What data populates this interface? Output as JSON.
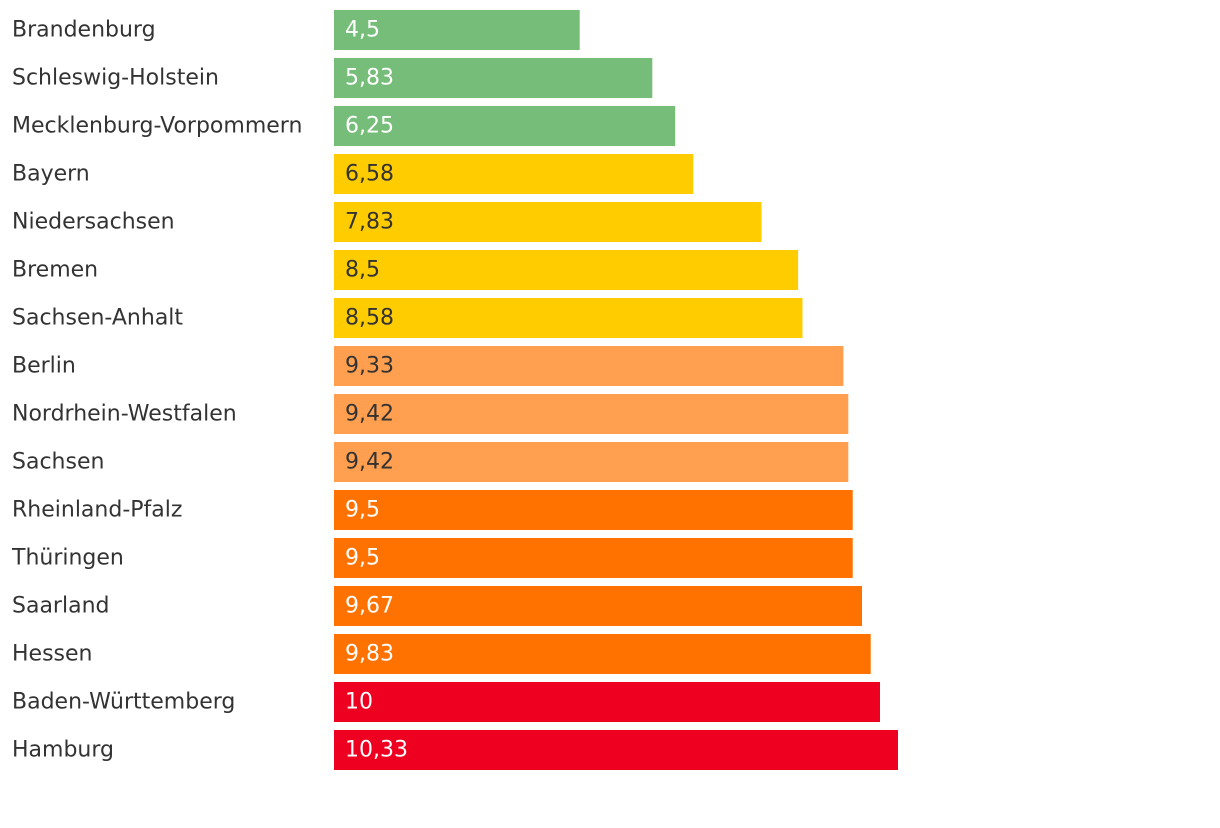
{
  "chart_data": {
    "type": "bar",
    "orientation": "horizontal",
    "title": "",
    "xlabel": "",
    "ylabel": "",
    "xlim": [
      0,
      10.33
    ],
    "grid": false,
    "legend": "none",
    "categories": [
      "Brandenburg",
      "Schleswig-Holstein",
      "Mecklenburg-Vorpommern",
      "Bayern",
      "Niedersachsen",
      "Bremen",
      "Sachsen-Anhalt",
      "Berlin",
      "Nordrhein-Westfalen",
      "Sachsen",
      "Rheinland-Pfalz",
      "Thüringen",
      "Saarland",
      "Hessen",
      "Baden-Württemberg",
      "Hamburg"
    ],
    "values": [
      4.5,
      5.83,
      6.25,
      6.58,
      7.83,
      8.5,
      8.58,
      9.33,
      9.42,
      9.42,
      9.5,
      9.5,
      9.67,
      9.83,
      10,
      10.33
    ],
    "value_labels": [
      "4,5",
      "5,83",
      "6,25",
      "6,58",
      "7,83",
      "8,5",
      "8,58",
      "9,33",
      "9,42",
      "9,42",
      "9,5",
      "9,5",
      "9,67",
      "9,83",
      "10",
      "10,33"
    ],
    "bar_colors": [
      "#77BD7A",
      "#77BD7A",
      "#77BD7A",
      "#FFCC00",
      "#FFCC00",
      "#FFCC00",
      "#FFCC00",
      "#FF9F4F",
      "#FF9F4F",
      "#FF9F4F",
      "#FF7200",
      "#FF7200",
      "#FF7200",
      "#FF7200",
      "#EE0020",
      "#EE0020"
    ],
    "label_colors": [
      "#ffffff",
      "#ffffff",
      "#ffffff",
      "#333333",
      "#333333",
      "#333333",
      "#333333",
      "#333333",
      "#333333",
      "#333333",
      "#ffffff",
      "#ffffff",
      "#ffffff",
      "#ffffff",
      "#ffffff",
      "#ffffff"
    ]
  }
}
